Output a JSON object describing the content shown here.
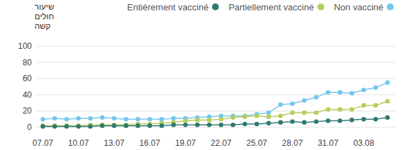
{
  "chart_data": {
    "type": "line",
    "y_label": "שיעור חולים קשה",
    "categories": [
      "07.07",
      null,
      null,
      "10.07",
      null,
      null,
      "13.07",
      null,
      null,
      "16.07",
      null,
      null,
      "19.07",
      null,
      null,
      "22.07",
      null,
      null,
      "25.07",
      null,
      null,
      "28.07",
      null,
      null,
      "31.07",
      null,
      null,
      "03.08",
      null,
      null
    ],
    "series": [
      {
        "name": "Entièrement vacciné",
        "color": "#2f7a6f",
        "values": [
          1,
          1,
          1,
          1,
          1,
          2,
          2,
          2,
          2,
          2,
          2,
          3,
          3,
          3,
          3,
          3,
          3,
          4,
          4,
          5,
          6,
          7,
          6,
          7,
          8,
          8,
          9,
          10,
          10,
          12
        ]
      },
      {
        "name": "Partiellement vacciné",
        "color": "#b7cd5c",
        "values": [
          2,
          2,
          2,
          2,
          3,
          3,
          3,
          3,
          4,
          4,
          5,
          6,
          8,
          9,
          9,
          10,
          12,
          13,
          14,
          13,
          14,
          18,
          18,
          18,
          22,
          22,
          22,
          27,
          27,
          32
        ]
      },
      {
        "name": "Non vacciné",
        "color": "#74c6ee",
        "values": [
          10,
          11,
          10,
          11,
          11,
          12,
          11,
          10,
          10,
          10,
          10,
          11,
          11,
          12,
          13,
          14,
          14,
          14,
          16,
          18,
          28,
          29,
          33,
          37,
          43,
          43,
          42,
          46,
          49,
          55
        ]
      }
    ],
    "ylim": [
      0,
      100
    ],
    "yticks": [
      0,
      20,
      40,
      60,
      80,
      100
    ],
    "grid": true,
    "legend": "top",
    "marker": "circle"
  }
}
